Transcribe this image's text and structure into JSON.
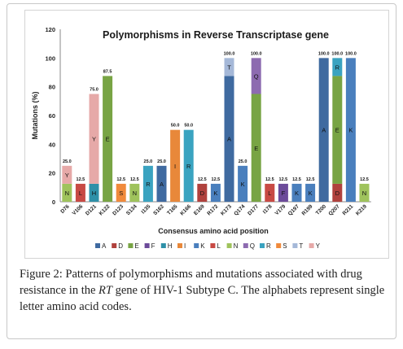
{
  "chart_data": {
    "type": "bar",
    "title": "Polymorphisms in Reverse Transcriptase gene",
    "xlabel": "Consensus amino acid position",
    "ylabel": "Mutations (%)",
    "ylim": [
      0,
      120
    ],
    "yticks": [
      0,
      20,
      40,
      60,
      80,
      100,
      120
    ],
    "grid": false,
    "legend_placement": "bottom",
    "categories": [
      "D76",
      "V106",
      "D121",
      "K122",
      "D123",
      "S134",
      "I135",
      "S162",
      "T165",
      "K166",
      "E169",
      "R172",
      "K173",
      "Q174",
      "D177",
      "I178",
      "V179",
      "Q197",
      "R199",
      "T200",
      "Q207",
      "R211",
      "K219"
    ],
    "totals": [
      "25.0",
      "12.5",
      "75.0",
      "87.5",
      "12.5",
      "12.5",
      "25.0",
      "25.0",
      "50.0",
      "50.0",
      "12.5",
      "12.5",
      "100.0",
      "25.0",
      "100.0",
      "12.5",
      "12.5",
      "12.5",
      "12.5",
      "100.0",
      "100.0",
      "100.0",
      "12.5"
    ],
    "stacks": [
      [
        {
          "aa": "N",
          "value": 12.5
        },
        {
          "aa": "Y",
          "value": 12.5
        }
      ],
      [
        {
          "aa": "L",
          "value": 12.5
        }
      ],
      [
        {
          "aa": "H",
          "value": 12.5
        },
        {
          "aa": "Y",
          "value": 62.5
        }
      ],
      [
        {
          "aa": "E",
          "value": 87.5
        }
      ],
      [
        {
          "aa": "S",
          "value": 12.5
        }
      ],
      [
        {
          "aa": "N",
          "value": 12.5
        }
      ],
      [
        {
          "aa": "R",
          "value": 25
        }
      ],
      [
        {
          "aa": "A",
          "value": 25
        }
      ],
      [
        {
          "aa": "I",
          "value": 50
        }
      ],
      [
        {
          "aa": "R",
          "value": 50
        }
      ],
      [
        {
          "aa": "D",
          "value": 12.5
        }
      ],
      [
        {
          "aa": "K",
          "value": 12.5
        }
      ],
      [
        {
          "aa": "A",
          "value": 87.5
        },
        {
          "aa": "T",
          "value": 12.5
        }
      ],
      [
        {
          "aa": "K",
          "value": 25
        }
      ],
      [
        {
          "aa": "E",
          "value": 75
        },
        {
          "aa": "Q",
          "value": 25
        }
      ],
      [
        {
          "aa": "L",
          "value": 12.5
        }
      ],
      [
        {
          "aa": "F",
          "value": 12.5
        }
      ],
      [
        {
          "aa": "K",
          "value": 12.5
        }
      ],
      [
        {
          "aa": "K",
          "value": 12.5
        }
      ],
      [
        {
          "aa": "A",
          "value": 100
        }
      ],
      [
        {
          "aa": "D",
          "value": 12.5
        },
        {
          "aa": "E",
          "value": 75
        },
        {
          "aa": "R",
          "value": 12.5
        }
      ],
      [
        {
          "aa": "K",
          "value": 100
        }
      ],
      [
        {
          "aa": "N",
          "value": 12.5
        }
      ]
    ],
    "legend": [
      "A",
      "D",
      "E",
      "F",
      "H",
      "I",
      "K",
      "L",
      "N",
      "Q",
      "R",
      "S",
      "T",
      "Y"
    ],
    "colors": {
      "A": "#3f6aa0",
      "D": "#b0413d",
      "E": "#78a444",
      "F": "#6c4b9a",
      "H": "#2e90a8",
      "I": "#e8883a",
      "K": "#4a7fbd",
      "L": "#c84a44",
      "N": "#9fc35c",
      "Q": "#8d6bb0",
      "R": "#3aa3c0",
      "S": "#f08a3c",
      "T": "#a5b8d8",
      "Y": "#e6a9a8"
    }
  },
  "caption": {
    "lead": "Figure 2:",
    "body_pre": " Patterns of polymorphisms and mutations associated with drug resistance in the ",
    "body_em": "RT",
    "body_post": " gene of HIV-1 Subtype C. The alphabets represent single letter amino acid codes."
  }
}
